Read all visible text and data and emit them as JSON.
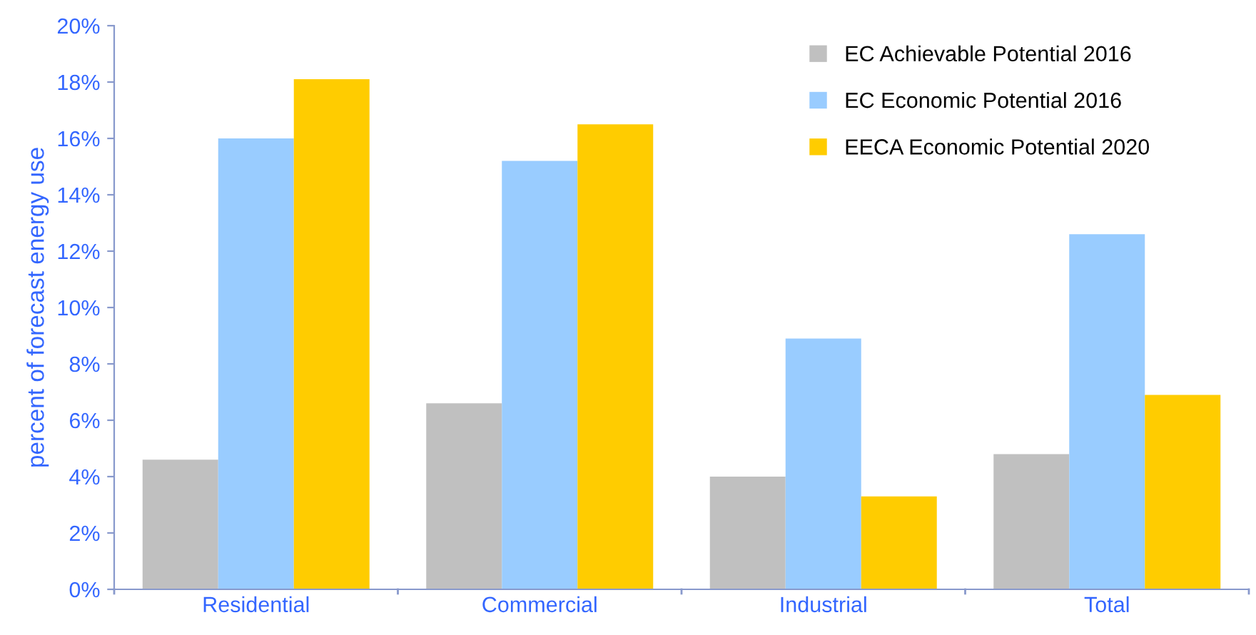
{
  "chart_data": {
    "type": "bar",
    "ylabel": "percent of forecast energy use",
    "categories": [
      "Residential",
      "Commercial",
      "Industrial",
      "Total"
    ],
    "series": [
      {
        "name": "EC Achievable Potential 2016",
        "color": "#c0c0c0",
        "values": [
          4.6,
          6.6,
          4.0,
          4.8
        ]
      },
      {
        "name": "EC Economic Potential 2016",
        "color": "#99ccff",
        "values": [
          16.0,
          15.2,
          8.9,
          12.6
        ]
      },
      {
        "name": "EECA Economic Potential 2020",
        "color": "#ffcc00",
        "values": [
          18.1,
          16.5,
          3.3,
          6.9
        ]
      }
    ],
    "ylim": [
      0,
      20
    ],
    "yticks": [
      {
        "value": 0,
        "label": "0%"
      },
      {
        "value": 2,
        "label": "2%"
      },
      {
        "value": 4,
        "label": "4%"
      },
      {
        "value": 6,
        "label": "6%"
      },
      {
        "value": 8,
        "label": "8%"
      },
      {
        "value": 10,
        "label": "10%"
      },
      {
        "value": 12,
        "label": "12%"
      },
      {
        "value": 14,
        "label": "14%"
      },
      {
        "value": 16,
        "label": "16%"
      },
      {
        "value": 18,
        "label": "18%"
      },
      {
        "value": 20,
        "label": "20%"
      }
    ],
    "grid": false,
    "legend": "top right"
  }
}
